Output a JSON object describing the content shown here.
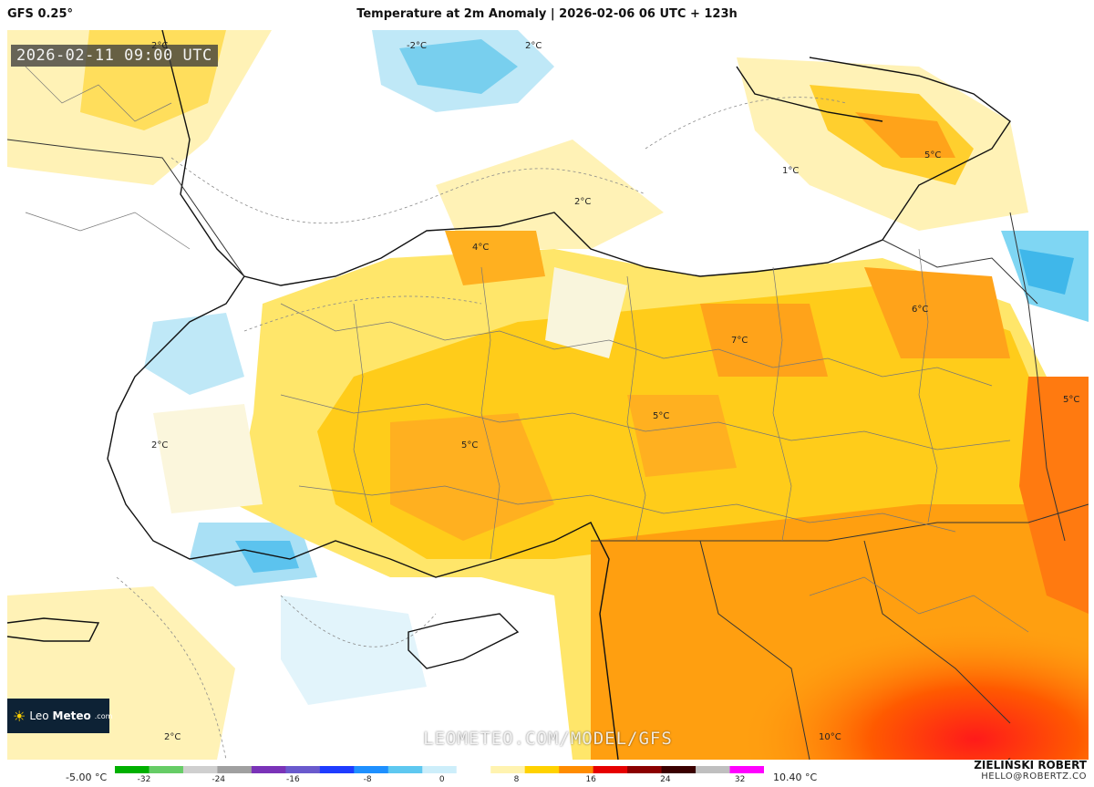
{
  "header": {
    "model": "GFS 0.25°",
    "title": "Temperature at 2m Anomaly | 2026-02-06 06 UTC + 123h"
  },
  "map": {
    "valid_time": "2026-02-11 09:00 UTC",
    "watermark": "LEOMETEO.COM/MODEL/GFS",
    "logo": {
      "prefix": "Leo",
      "brand": "Meteo",
      "suffix": ".com"
    },
    "contour_labels": [
      "-2°C",
      "2°C",
      "2°C",
      "2°C",
      "1°C",
      "5°C",
      "4°C",
      "6°C",
      "7°C",
      "5°C",
      "5°C",
      "5°C",
      "2°C",
      "2°C",
      "10°C"
    ]
  },
  "colorbar": {
    "min_label": "-5.00 °C",
    "max_label": "10.40 °C",
    "ticks": [
      "-32",
      "-24",
      "-16",
      "-8",
      "0",
      "8",
      "16",
      "24",
      "32"
    ],
    "colors": [
      "#00b000",
      "#66cc66",
      "#cfcfcf",
      "#a0a0a0",
      "#7a33b8",
      "#6a5acd",
      "#1e3cff",
      "#1e90ff",
      "#5ec8f0",
      "#cdeefa",
      "#ffffff",
      "#fff3b0",
      "#ffd200",
      "#ff8c00",
      "#e60000",
      "#8b0000",
      "#3a0000",
      "#bfbfbf",
      "#ff00ff"
    ]
  },
  "footer": {
    "author": "ZIELIŃSKI ROBERT",
    "email": "HELLO@ROBERTZ.CO"
  }
}
